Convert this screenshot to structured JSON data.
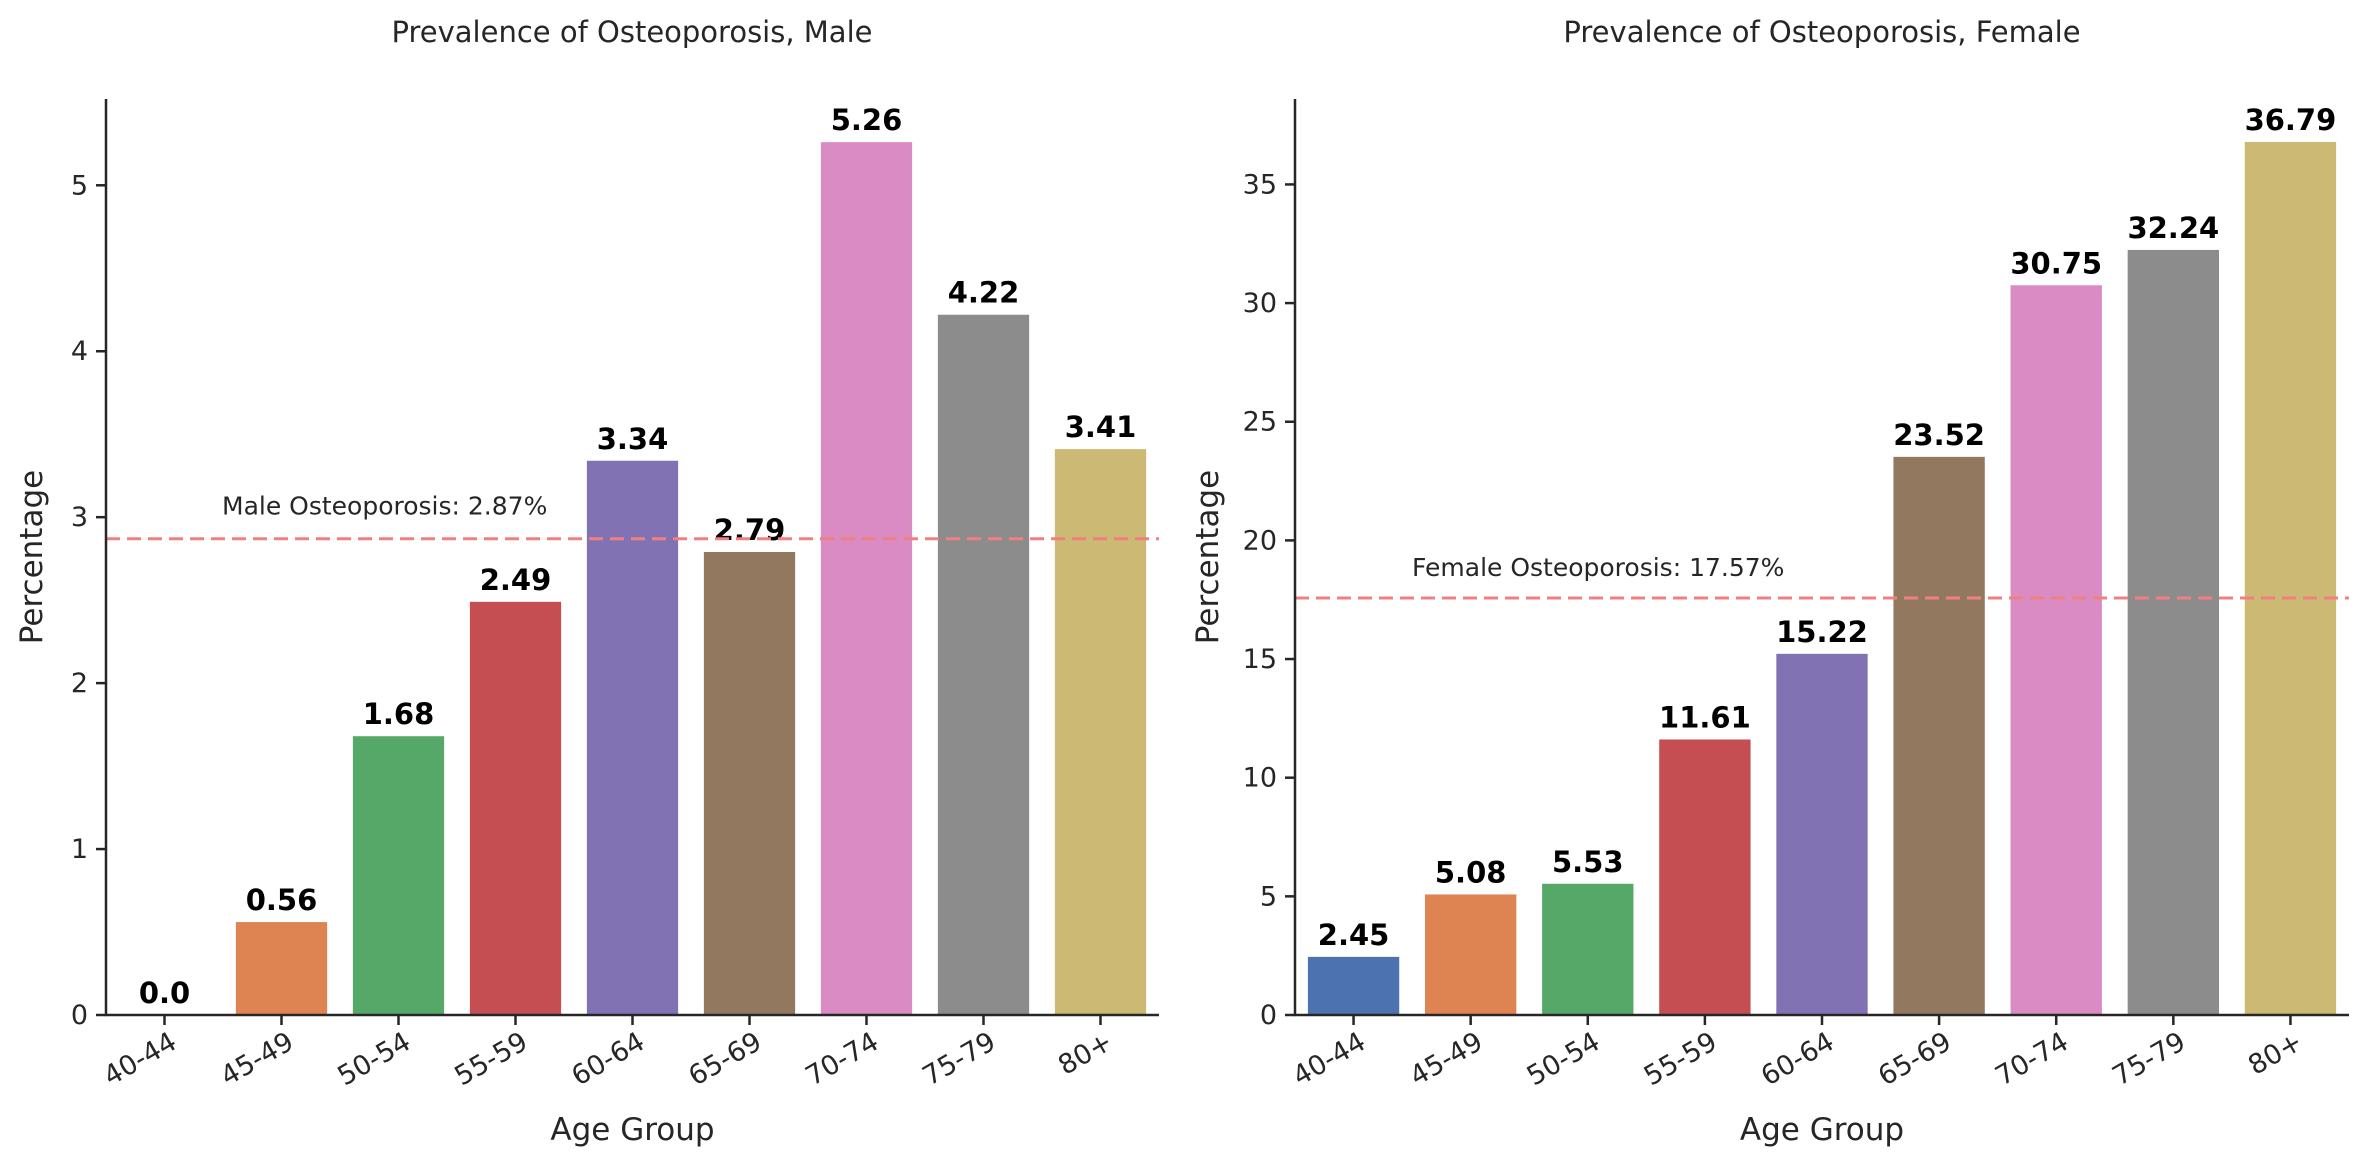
{
  "chart_data": [
    {
      "type": "bar",
      "title": "Prevalence of Osteoporosis, Male",
      "xlabel": "Age Group",
      "ylabel": "Percentage",
      "categories": [
        "40-44",
        "45-49",
        "50-54",
        "55-59",
        "60-64",
        "65-69",
        "70-74",
        "75-79",
        "80+"
      ],
      "values": [
        0.0,
        0.56,
        1.68,
        2.49,
        3.34,
        2.79,
        5.26,
        4.22,
        3.41
      ],
      "value_labels": [
        "0.0",
        "0.56",
        "1.68",
        "2.49",
        "3.34",
        "2.79",
        "5.26",
        "4.22",
        "3.41"
      ],
      "ylim": [
        0,
        5.52
      ],
      "yticks": [
        0,
        1,
        2,
        3,
        4,
        5
      ],
      "colors": [
        "#4c72b0",
        "#dd8452",
        "#55a868",
        "#c44e52",
        "#8172b3",
        "#937860",
        "#da8bc3",
        "#8c8c8c",
        "#ccb974"
      ],
      "reference_line": {
        "value": 2.87,
        "label": "Male Osteoporosis: 2.87%",
        "color": "#f08080"
      },
      "grid": false,
      "legend": "none"
    },
    {
      "type": "bar",
      "title": "Prevalence of Osteoporosis, Female",
      "xlabel": "Age Group",
      "ylabel": "Percentage",
      "categories": [
        "40-44",
        "45-49",
        "50-54",
        "55-59",
        "60-64",
        "65-69",
        "70-74",
        "75-79",
        "80+"
      ],
      "values": [
        2.45,
        5.08,
        5.53,
        11.61,
        15.22,
        23.52,
        30.75,
        32.24,
        36.79
      ],
      "value_labels": [
        "2.45",
        "5.08",
        "5.53",
        "11.61",
        "15.22",
        "23.52",
        "30.75",
        "32.24",
        "36.79"
      ],
      "ylim": [
        0,
        38.6
      ],
      "yticks": [
        0,
        5,
        10,
        15,
        20,
        25,
        30,
        35
      ],
      "colors": [
        "#4c72b0",
        "#dd8452",
        "#55a868",
        "#c44e52",
        "#8172b3",
        "#937860",
        "#da8bc3",
        "#8c8c8c",
        "#ccb974"
      ],
      "reference_line": {
        "value": 17.57,
        "label": "Female Osteoporosis: 17.57%",
        "color": "#f08080"
      },
      "grid": false,
      "legend": "none"
    }
  ]
}
